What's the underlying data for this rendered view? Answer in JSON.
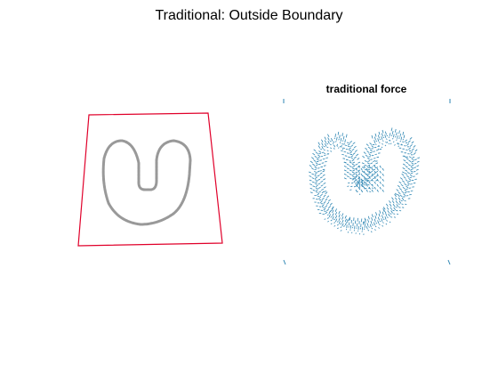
{
  "figure": {
    "title": "Traditional: Outside Boundary"
  },
  "left_panel": {
    "boundary_color": "#e0002a",
    "shape_color": "#999999"
  },
  "right_panel": {
    "title": "traditional force",
    "vector_color": "#2e86b3"
  }
}
